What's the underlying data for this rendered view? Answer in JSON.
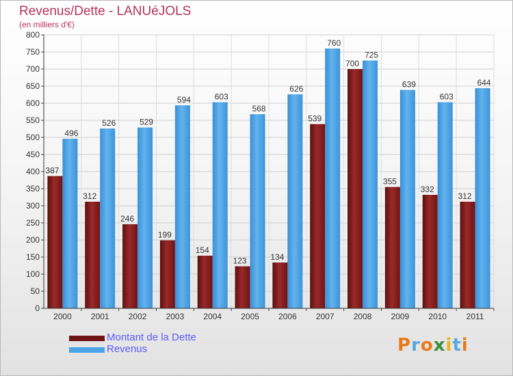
{
  "chart_data": {
    "type": "bar",
    "title": "Revenus/Dette - LANUéJOLS",
    "subtitle": "(en milliers d'€)",
    "categories": [
      "2000",
      "2001",
      "2002",
      "2003",
      "2004",
      "2005",
      "2006",
      "2007",
      "2008",
      "2009",
      "2010",
      "2011"
    ],
    "series": [
      {
        "name": "Montant de la Dette",
        "color": "#8b2020",
        "values": [
          387,
          312,
          246,
          199,
          154,
          123,
          134,
          539,
          700,
          355,
          332,
          312
        ]
      },
      {
        "name": "Revenus",
        "color": "#4aa3e6",
        "values": [
          496,
          526,
          529,
          594,
          603,
          568,
          626,
          760,
          725,
          639,
          603,
          644
        ]
      }
    ],
    "ylim": [
      0,
      800
    ],
    "yticks": [
      0,
      50,
      100,
      150,
      200,
      250,
      300,
      350,
      400,
      450,
      500,
      550,
      600,
      650,
      700,
      750,
      800
    ],
    "grid": true,
    "legend_position": "bottom-left"
  },
  "logo": {
    "text": "Proxiti",
    "letters": [
      {
        "ch": "P",
        "color": "#e87a1c"
      },
      {
        "ch": "r",
        "color": "#5aa6e0"
      },
      {
        "ch": "o",
        "color": "#e87a1c"
      },
      {
        "ch": "x",
        "color": "#3c8f3c"
      },
      {
        "ch": "i",
        "color": "#e8b81c"
      },
      {
        "ch": "t",
        "color": "#5aa6e0"
      },
      {
        "ch": "i",
        "color": "#e87a1c"
      }
    ]
  }
}
